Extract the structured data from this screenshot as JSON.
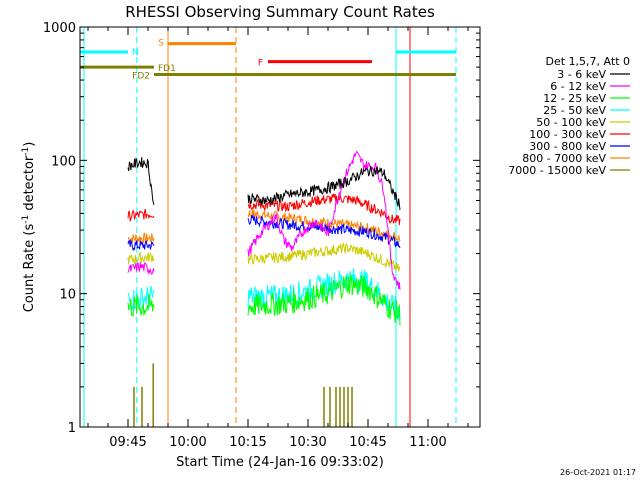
{
  "chart_data": {
    "type": "line",
    "title": "RHESSI Observing Summary Count Rates",
    "xlabel": "Start Time (24-Jan-16 09:33:02)",
    "ylabel_prefix": "Count Rate (s",
    "ylabel_sup1": "-1",
    "ylabel_mid": " detector",
    "ylabel_sup2": "-1",
    "ylabel_suffix": ")",
    "y_scale": "log",
    "ylim": [
      1,
      1000
    ],
    "xlim": [
      "09:33",
      "11:13"
    ],
    "y_ticks": [
      {
        "value": 1,
        "label": "1"
      },
      {
        "value": 10,
        "label": "10"
      },
      {
        "value": 100,
        "label": "100"
      },
      {
        "value": 1000,
        "label": "1000"
      }
    ],
    "x_ticks": [
      {
        "value": "09:45",
        "label": "09:45"
      },
      {
        "value": "10:00",
        "label": "10:00"
      },
      {
        "value": "10:15",
        "label": "10:15"
      },
      {
        "value": "10:30",
        "label": "10:30"
      },
      {
        "value": "10:45",
        "label": "10:45"
      },
      {
        "value": "11:00",
        "label": "11:00"
      }
    ],
    "legend_header": "Det 1,5,7, Att 0",
    "legend_placement": "right",
    "series": [
      {
        "name": "3 - 6 keV",
        "color": "#000000",
        "segments": [
          {
            "x": [
              "09:45",
              "09:48",
              "09:50",
              "09:51.5"
            ],
            "y": [
              90,
              97,
              95,
              45
            ]
          },
          {
            "x": [
              "10:15",
              "10:20",
              "10:25",
              "10:30",
              "10:35",
              "10:40",
              "10:44",
              "10:47",
              "10:49",
              "10:51",
              "10:53"
            ],
            "y": [
              52,
              50,
              55,
              58,
              62,
              70,
              82,
              84,
              80,
              60,
              46
            ]
          }
        ]
      },
      {
        "name": "6 - 12 keV",
        "color": "#ff00ff",
        "segments": [
          {
            "x": [
              "09:45",
              "09:48",
              "09:51.5"
            ],
            "y": [
              15,
              16,
              15
            ]
          },
          {
            "x": [
              "10:15",
              "10:18",
              "10:22",
              "10:24",
              "10:26",
              "10:29",
              "10:32",
              "10:35",
              "10:38",
              "10:40",
              "10:42",
              "10:44",
              "10:47",
              "10:49",
              "10:51",
              "10:53"
            ],
            "y": [
              20,
              28,
              38,
              25,
              22,
              30,
              35,
              28,
              60,
              85,
              112,
              92,
              88,
              60,
              15,
              11
            ]
          }
        ]
      },
      {
        "name": "12 - 25 keV",
        "color": "#00ff00",
        "segments": [
          {
            "x": [
              "09:45",
              "09:51.5"
            ],
            "y": [
              8,
              8
            ]
          },
          {
            "x": [
              "10:15",
              "10:25",
              "10:35",
              "10:40",
              "10:45",
              "10:50",
              "10:53"
            ],
            "y": [
              8,
              8.5,
              10,
              12,
              11,
              8,
              7
            ]
          }
        ]
      },
      {
        "name": "25 - 50 keV",
        "color": "#00ffff",
        "segments": [
          {
            "x": [
              "09:45",
              "09:51.5"
            ],
            "y": [
              9,
              9.5
            ]
          },
          {
            "x": [
              "10:15",
              "10:22",
              "10:30",
              "10:36",
              "10:40",
              "10:44",
              "10:48",
              "10:51",
              "10:53"
            ],
            "y": [
              9.5,
              9.5,
              10.5,
              12,
              13,
              12.5,
              10,
              8,
              7.5
            ]
          }
        ]
      },
      {
        "name": "50 - 100 keV",
        "color": "#cccc00",
        "segments": [
          {
            "x": [
              "09:45",
              "09:51.5"
            ],
            "y": [
              18,
              19
            ]
          },
          {
            "x": [
              "10:15",
              "10:25",
              "10:35",
              "10:40",
              "10:45",
              "10:50",
              "10:53"
            ],
            "y": [
              18,
              19,
              21,
              22,
              20,
              17,
              15
            ]
          }
        ]
      },
      {
        "name": "100 - 300 keV",
        "color": "#ff0000",
        "segments": [
          {
            "x": [
              "09:45",
              "09:51.5"
            ],
            "y": [
              38,
              40
            ]
          },
          {
            "x": [
              "10:15",
              "10:25",
              "10:32",
              "10:38",
              "10:42",
              "10:46",
              "10:49",
              "10:51",
              "10:53"
            ],
            "y": [
              47,
              45,
              50,
              52,
              50,
              44,
              40,
              36,
              35
            ]
          }
        ]
      },
      {
        "name": "300 - 800 keV",
        "color": "#0000ff",
        "segments": [
          {
            "x": [
              "09:45",
              "09:51.5"
            ],
            "y": [
              23,
              23
            ]
          },
          {
            "x": [
              "10:15",
              "10:25",
              "10:35",
              "10:45",
              "10:50",
              "10:53"
            ],
            "y": [
              36,
              33,
              31,
              29,
              26,
              23
            ]
          }
        ]
      },
      {
        "name": "800 - 7000 keV",
        "color": "#ff8000",
        "segments": [
          {
            "x": [
              "09:45",
              "09:51.5"
            ],
            "y": [
              26,
              26
            ]
          },
          {
            "x": [
              "10:15",
              "10:25",
              "10:35",
              "10:45",
              "10:50",
              "10:53"
            ],
            "y": [
              40,
              37,
              34,
              31,
              28,
              26
            ]
          }
        ]
      },
      {
        "name": "7000 - 15000 keV",
        "color": "#808000",
        "segments": [
          {
            "x": [
              "09:45",
              "09:51.5"
            ],
            "y": [
              1,
              1
            ]
          },
          {
            "x": [
              "10:34",
              "10:41"
            ],
            "y": [
              1,
              1
            ]
          }
        ],
        "spikes": [
          {
            "x": "09:46.5",
            "y": 2
          },
          {
            "x": "09:48.5",
            "y": 2
          },
          {
            "x": "09:51.3",
            "y": 3
          },
          {
            "x": "10:34",
            "y": 2
          },
          {
            "x": "10:35.5",
            "y": 2
          },
          {
            "x": "10:37",
            "y": 2
          },
          {
            "x": "10:38",
            "y": 2
          },
          {
            "x": "10:39",
            "y": 2
          },
          {
            "x": "10:40",
            "y": 2
          },
          {
            "x": "10:41",
            "y": 2
          }
        ]
      }
    ],
    "flag_bars": [
      {
        "label": "N",
        "color": "#00ffff",
        "y": 650,
        "segments": [
          [
            "09:33",
            "09:45"
          ],
          [
            "10:52",
            "11:07"
          ]
        ]
      },
      {
        "label": "S",
        "color": "#ff8000",
        "y": 750,
        "segments": [
          [
            "09:55",
            "10:12"
          ]
        ]
      },
      {
        "label": "F",
        "color": "#ff0000",
        "y": 550,
        "segments": [
          [
            "10:20",
            "10:46"
          ]
        ]
      },
      {
        "label": "FD1",
        "color": "#808000",
        "y": 500,
        "segments": [
          [
            "09:33",
            "09:51.5"
          ]
        ]
      },
      {
        "label": "FD2",
        "color": "#808000",
        "y": 440,
        "segments": [
          [
            "09:51.5",
            "11:07"
          ]
        ]
      }
    ],
    "vertical_lines": [
      {
        "x": "09:34",
        "color": "#00ffff",
        "style": "solid"
      },
      {
        "x": "09:47.2",
        "color": "#00ffff",
        "style": "dashed"
      },
      {
        "x": "09:55",
        "color": "#ff8000",
        "style": "solid"
      },
      {
        "x": "10:12",
        "color": "#ff8000",
        "style": "dashed"
      },
      {
        "x": "10:52",
        "color": "#00ffff",
        "style": "solid"
      },
      {
        "x": "10:55.5",
        "color": "#ff0000",
        "style": "solid"
      },
      {
        "x": "11:07",
        "color": "#00ffff",
        "style": "dashed"
      }
    ],
    "timestamp": "26-Oct-2021 01:17"
  }
}
